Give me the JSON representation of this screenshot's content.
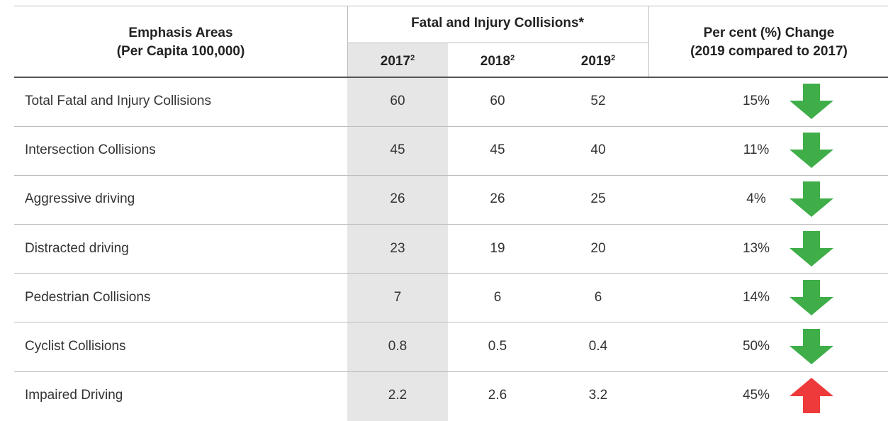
{
  "header": {
    "emphasis": [
      "Emphasis Areas",
      "(Per Capita 100,000)"
    ],
    "group": "Fatal and Injury Collisions*",
    "years": [
      {
        "year": "2017",
        "note": "2"
      },
      {
        "year": "2018",
        "note": "2"
      },
      {
        "year": "2019",
        "note": "2"
      }
    ],
    "change": [
      "Per cent (%) Change",
      "(2019 compared to 2017)"
    ]
  },
  "rows": [
    {
      "label": "Total Fatal and Injury Collisions",
      "values": [
        60,
        60,
        52
      ],
      "change": "15%",
      "trend": "down"
    },
    {
      "label": "Intersection Collisions",
      "values": [
        45,
        45,
        40
      ],
      "change": "11%",
      "trend": "down"
    },
    {
      "label": "Aggressive driving",
      "values": [
        26,
        26,
        25
      ],
      "change": "4%",
      "trend": "down"
    },
    {
      "label": "Distracted driving",
      "values": [
        23,
        19,
        20
      ],
      "change": "13%",
      "trend": "down"
    },
    {
      "label": "Pedestrian Collisions",
      "values": [
        7,
        6,
        6
      ],
      "change": "14%",
      "trend": "down"
    },
    {
      "label": "Cyclist Collisions",
      "values": [
        0.8,
        0.5,
        0.4
      ],
      "change": "50%",
      "trend": "down"
    },
    {
      "label": "Impaired Driving",
      "values": [
        2.2,
        2.6,
        3.2
      ],
      "change": "45%",
      "trend": "up"
    }
  ]
}
